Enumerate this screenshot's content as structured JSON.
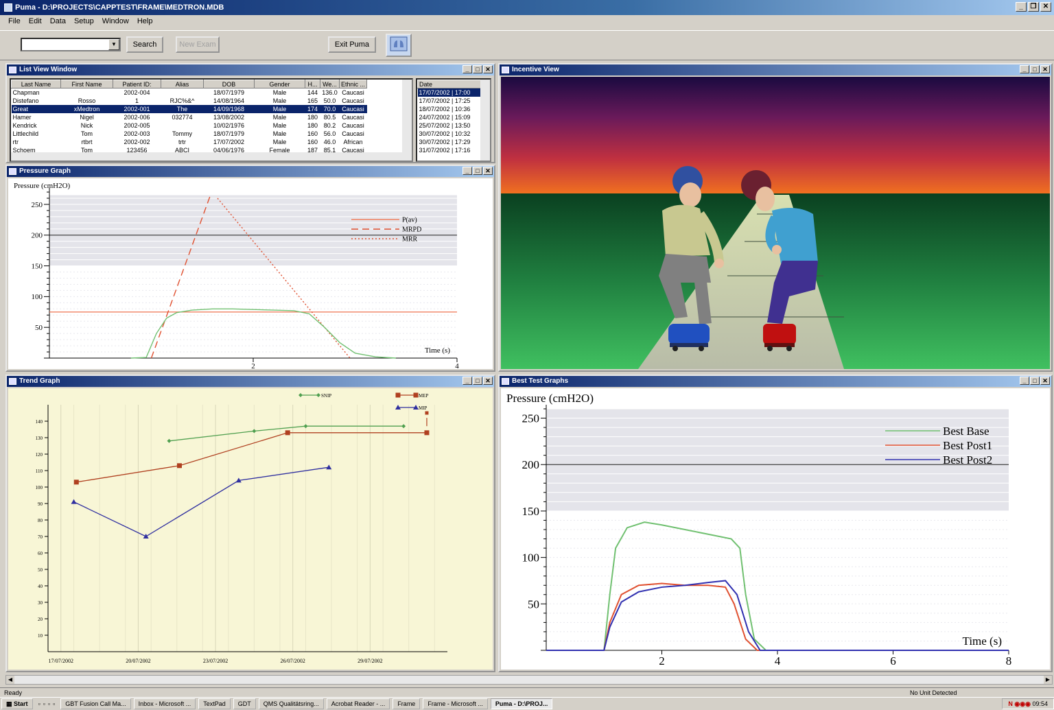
{
  "window": {
    "title": "Puma - D:\\PROJECTS\\CAPPTEST\\FRAME\\MEDTRON.MDB"
  },
  "menu": [
    "File",
    "Edit",
    "Data",
    "Setup",
    "Window",
    "Help"
  ],
  "toolbar": {
    "combo_value": "",
    "search_label": "Search",
    "new_exam_label": "New Exam",
    "exit_label": "Exit Puma"
  },
  "list_view": {
    "title": "List View Window",
    "columns": [
      "Last Name",
      "First Name",
      "Patient ID:",
      "Alias",
      "DOB",
      "Gender",
      "H...",
      "We...",
      "Ethnic ..."
    ],
    "rows": [
      [
        "Chapman",
        "",
        "2002-004",
        "",
        "18/07/1979",
        "Male",
        "144",
        "136.0",
        "Caucasi"
      ],
      [
        "Distefano",
        "Rosso",
        "1",
        "RJC%&^",
        "14/08/1964",
        "Male",
        "165",
        "50.0",
        "Caucasi"
      ],
      [
        "Great",
        "xMedtron",
        "2002-001",
        "The",
        "14/09/1968",
        "Male",
        "174",
        "70.0",
        "Caucasi"
      ],
      [
        "Hamer",
        "Nigel",
        "2002-006",
        "032774",
        "13/08/2002",
        "Male",
        "180",
        "80.5",
        "Caucasi"
      ],
      [
        "Kendrick",
        "Nick",
        "2002-005",
        "",
        "10/02/1976",
        "Male",
        "180",
        "80.2",
        "Caucasi"
      ],
      [
        "Littlechild",
        "Tom",
        "2002-003",
        "Tommy",
        "18/07/1979",
        "Male",
        "160",
        "56.0",
        "Caucasi"
      ],
      [
        "rtr",
        "rtbrt",
        "2002-002",
        "trtr",
        "17/07/2002",
        "Male",
        "160",
        "46.0",
        "African"
      ],
      [
        "Schoem",
        "Tom",
        "123456",
        "ABCI",
        "04/06/1976",
        "Female",
        "187",
        "85.1",
        "Caucasi"
      ]
    ],
    "selected_row": 2,
    "dates_header": "Date",
    "dates": [
      "17/07/2002 | 17:00",
      "17/07/2002 | 17:25",
      "18/07/2002 | 10:36",
      "24/07/2002 | 15:09",
      "25/07/2002 | 13:50",
      "30/07/2002 | 10:32",
      "30/07/2002 | 17:29",
      "31/07/2002 | 17:16"
    ],
    "selected_date": 0
  },
  "incentive": {
    "title": "Incentive View"
  },
  "pressure_graph": {
    "title": "Pressure Graph"
  },
  "trend_graph": {
    "title": "Trend Graph"
  },
  "best_test": {
    "title": "Best Test Graphs"
  },
  "statusbar": {
    "left": "Ready",
    "right": "No Unit Detected"
  },
  "taskbar": {
    "start": "Start",
    "tasks": [
      "GBT Fusion Call Ma...",
      "Inbox - Microsoft ...",
      "TextPad",
      "GDT",
      "QMS Qualitätsring...",
      "Acrobat Reader - ...",
      "Frame",
      "Frame - Microsoft ...",
      "Puma - D:\\PROJ..."
    ],
    "active_task": 8,
    "clock": "09:54"
  },
  "chart_data": [
    {
      "type": "line",
      "title": "",
      "ylabel": "Pressure (cmH2O)",
      "xlabel": "Time (s)",
      "xlim": [
        0,
        4
      ],
      "ylim": [
        0,
        270
      ],
      "yticks": [
        50,
        100,
        150,
        200,
        250
      ],
      "xticks": [
        2,
        4
      ],
      "shaded_band": [
        150,
        265
      ],
      "reference_line": 200,
      "legend": [
        "P(av)",
        "MRPD",
        "MRR"
      ],
      "series": [
        {
          "name": "P(av)",
          "x": [
            0,
            4
          ],
          "y": [
            75,
            75
          ],
          "color": "#f08060"
        },
        {
          "name": "MRPD",
          "x": [
            1.0,
            1.58
          ],
          "y": [
            0,
            265
          ],
          "color": "#e05030",
          "dash": "long"
        },
        {
          "name": "MRR",
          "x": [
            1.65,
            2.95
          ],
          "y": [
            260,
            0
          ],
          "color": "#e05030",
          "dash": "dot"
        },
        {
          "name": "Pressure",
          "x": [
            0.8,
            0.95,
            1.05,
            1.15,
            1.25,
            1.4,
            1.6,
            1.8,
            2.0,
            2.2,
            2.4,
            2.55,
            2.7,
            2.85,
            3.0,
            3.2,
            3.4
          ],
          "y": [
            0,
            1,
            40,
            65,
            74,
            78,
            80,
            80,
            79,
            78,
            77,
            72,
            50,
            25,
            8,
            2,
            0
          ],
          "color": "#70c070"
        }
      ]
    },
    {
      "type": "line",
      "title": "",
      "x": [
        "17/07/2002",
        "20/07/2002",
        "23/07/2002",
        "26/07/2002",
        "29/07/2002"
      ],
      "ylim": [
        0,
        150
      ],
      "yticks": [
        10,
        20,
        30,
        40,
        50,
        60,
        70,
        80,
        90,
        100,
        110,
        120,
        130,
        140
      ],
      "legend": [
        "SNIP",
        "MEP",
        "MIP"
      ],
      "series": [
        {
          "name": "SNIP",
          "points": [
            [
              21.2,
              128
            ],
            [
              24.5,
              134
            ],
            [
              26.5,
              137
            ],
            [
              30.3,
              137
            ]
          ],
          "color": "#50a050",
          "marker": "diamond"
        },
        {
          "name": "MEP",
          "points": [
            [
              17.6,
              103
            ],
            [
              21.6,
              113
            ],
            [
              25.8,
              133
            ],
            [
              31.2,
              133
            ]
          ],
          "color": "#b04020",
          "marker": "square"
        },
        {
          "name": "MIP",
          "points": [
            [
              17.5,
              91
            ],
            [
              20.3,
              70
            ],
            [
              23.9,
              104
            ],
            [
              27.4,
              112
            ]
          ],
          "color": "#3030a0",
          "marker": "triangle"
        }
      ]
    },
    {
      "type": "line",
      "title": "",
      "ylabel": "Pressure (cmH2O)",
      "xlabel": "Time (s)",
      "xlim": [
        0,
        8
      ],
      "ylim": [
        0,
        260
      ],
      "yticks": [
        50,
        100,
        150,
        200,
        250
      ],
      "xticks": [
        2,
        4,
        6,
        8
      ],
      "shaded_band": [
        150,
        260
      ],
      "reference_line": 200,
      "legend": [
        "Best Base",
        "Best Post1",
        "Best Post2"
      ],
      "series": [
        {
          "name": "Best Base",
          "x": [
            0,
            1.0,
            1.1,
            1.2,
            1.4,
            1.7,
            2.0,
            2.4,
            2.8,
            3.2,
            3.35,
            3.45,
            3.6,
            3.8,
            4.2,
            8
          ],
          "y": [
            0,
            0,
            60,
            110,
            132,
            138,
            135,
            130,
            125,
            120,
            110,
            60,
            12,
            0,
            0,
            0
          ],
          "color": "#70c070"
        },
        {
          "name": "Best Post1",
          "x": [
            0,
            1.0,
            1.1,
            1.3,
            1.6,
            2.0,
            2.4,
            2.8,
            3.1,
            3.25,
            3.45,
            3.65,
            8
          ],
          "y": [
            0,
            0,
            30,
            60,
            70,
            72,
            70,
            70,
            68,
            50,
            12,
            0,
            0
          ],
          "color": "#e05030"
        },
        {
          "name": "Best Post2",
          "x": [
            0,
            1.0,
            1.1,
            1.3,
            1.6,
            2.0,
            2.4,
            2.8,
            3.1,
            3.3,
            3.5,
            3.7,
            8
          ],
          "y": [
            0,
            0,
            25,
            52,
            63,
            68,
            70,
            73,
            75,
            60,
            20,
            0,
            0
          ],
          "color": "#3030b0"
        }
      ]
    }
  ],
  "colors": {
    "window_bg": "#d4d0c8",
    "title_start": "#0a246a",
    "title_end": "#a6caf0",
    "trend_bg": "#f8f6d6",
    "grid_band": "#e4e4ea"
  }
}
